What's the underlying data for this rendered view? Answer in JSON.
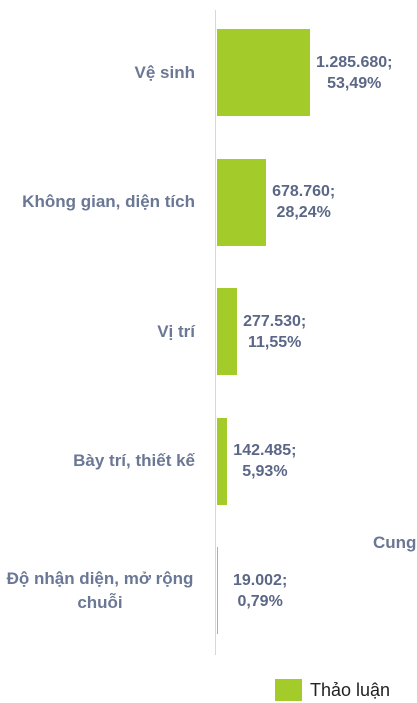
{
  "chart_data": {
    "type": "bar",
    "orientation": "horizontal",
    "categories": [
      "Vệ sinh",
      "Không gian, diện tích",
      "Vị trí",
      "Bày trí, thiết kế",
      "Độ nhận diện, mở rộng chuỗi"
    ],
    "series": [
      {
        "name": "Thảo luận",
        "color": "#a3cc2a",
        "values": [
          1285680,
          678760,
          277530,
          142485,
          19002
        ],
        "value_labels": [
          "1.285.680; 53,49%",
          "678.760; 28,24%",
          "277.530; 11,55%",
          "142.485; 5,93%",
          "19.002; 0,79%"
        ]
      }
    ],
    "xlim": [
      0,
      2765000
    ],
    "annotations": [
      "Cung"
    ],
    "legend": "bottom"
  }
}
